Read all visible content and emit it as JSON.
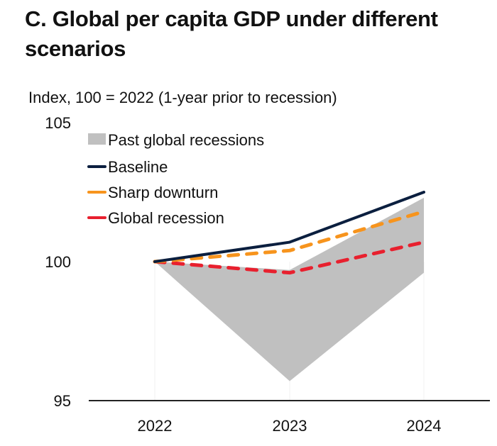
{
  "chart_data": {
    "type": "line",
    "title": "C. Global per capita GDP under different scenarios",
    "subtitle": "Index, 100 = 2022 (1-year prior to recession)",
    "xlabel": "",
    "ylabel": "",
    "categories": [
      "2022",
      "2023",
      "2024"
    ],
    "ylim": [
      95,
      105
    ],
    "yticks": [
      "95",
      "100",
      "105"
    ],
    "legend_position": "top-left",
    "band": {
      "name": "Past global recessions",
      "color": "#c0c0c0",
      "upper": [
        100,
        99.7,
        102.3
      ],
      "lower": [
        100,
        95.7,
        99.6
      ]
    },
    "series": [
      {
        "name": "Baseline",
        "values": [
          100,
          100.7,
          102.5
        ],
        "color": "#0b1f3f",
        "dash": false
      },
      {
        "name": "Sharp downturn",
        "values": [
          100,
          100.4,
          101.8
        ],
        "color": "#f7941d",
        "dash": true
      },
      {
        "name": "Global recession",
        "values": [
          100,
          99.6,
          100.7
        ],
        "color": "#e8202e",
        "dash": true
      }
    ]
  }
}
